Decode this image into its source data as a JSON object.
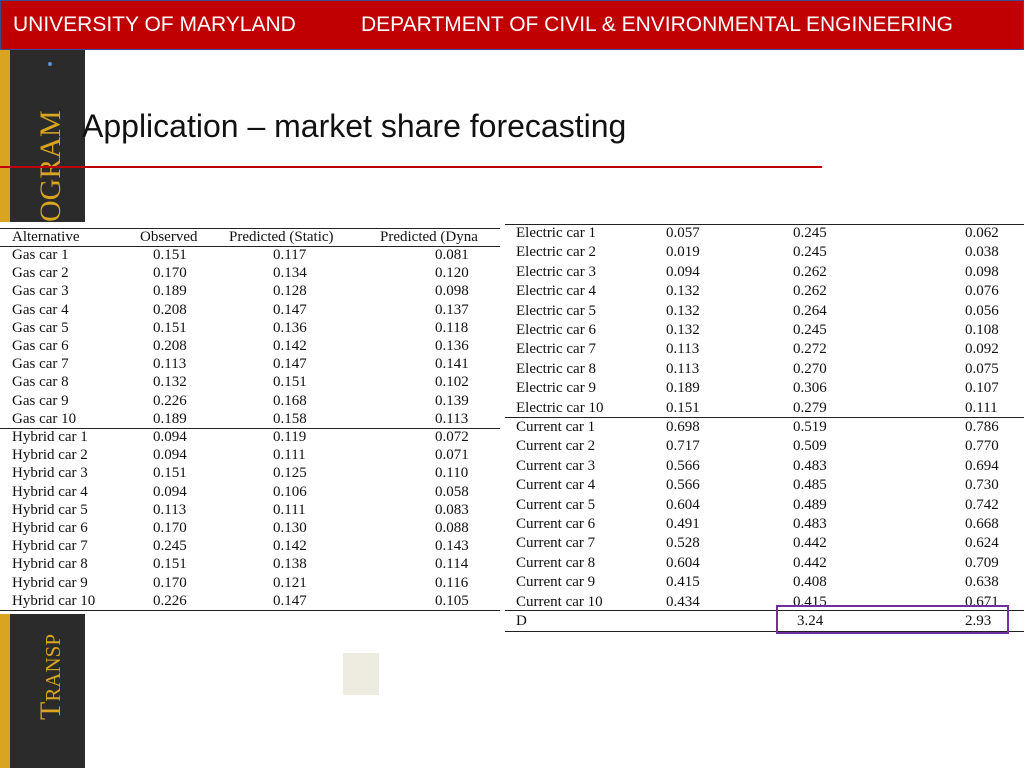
{
  "header": {
    "left": "UNIVERSITY OF MARYLAND",
    "right": "DEPARTMENT OF CIVIL & ENVIRONMENTAL ENGINEERING"
  },
  "sidebar": {
    "top": "OGRAM",
    "bottom": "Transp"
  },
  "title": "Application – market share forecasting",
  "left_table": {
    "columns": [
      "Alternative",
      "Observed",
      "Predicted (Static)",
      "Predicted (Dyna"
    ],
    "rows": [
      [
        "Gas car 1",
        "0.151",
        "0.117",
        "0.081"
      ],
      [
        "Gas car 2",
        "0.170",
        "0.134",
        "0.120"
      ],
      [
        "Gas car 3",
        "0.189",
        "0.128",
        "0.098"
      ],
      [
        "Gas car 4",
        "0.208",
        "0.147",
        "0.137"
      ],
      [
        "Gas car 5",
        "0.151",
        "0.136",
        "0.118"
      ],
      [
        "Gas car 6",
        "0.208",
        "0.142",
        "0.136"
      ],
      [
        "Gas car 7",
        "0.113",
        "0.147",
        "0.141"
      ],
      [
        "Gas car 8",
        "0.132",
        "0.151",
        "0.102"
      ],
      [
        "Gas car 9",
        "0.226",
        "0.168",
        "0.139"
      ],
      [
        "Gas car 10",
        "0.189",
        "0.158",
        "0.113"
      ],
      [
        "Hybrid car 1",
        "0.094",
        "0.119",
        "0.072"
      ],
      [
        "Hybrid car 2",
        "0.094",
        "0.111",
        "0.071"
      ],
      [
        "Hybrid car 3",
        "0.151",
        "0.125",
        "0.110"
      ],
      [
        "Hybrid car 4",
        "0.094",
        "0.106",
        "0.058"
      ],
      [
        "Hybrid car 5",
        "0.113",
        "0.111",
        "0.083"
      ],
      [
        "Hybrid car 6",
        "0.170",
        "0.130",
        "0.088"
      ],
      [
        "Hybrid car 7",
        "0.245",
        "0.142",
        "0.143"
      ],
      [
        "Hybrid car 8",
        "0.151",
        "0.138",
        "0.114"
      ],
      [
        "Hybrid car 9",
        "0.170",
        "0.121",
        "0.116"
      ],
      [
        "Hybrid car 10",
        "0.226",
        "0.147",
        "0.105"
      ]
    ]
  },
  "right_table": {
    "rows": [
      [
        "Electric car 1",
        "0.057",
        "0.245",
        "0.062"
      ],
      [
        "Electric car 2",
        "0.019",
        "0.245",
        "0.038"
      ],
      [
        "Electric car 3",
        "0.094",
        "0.262",
        "0.098"
      ],
      [
        "Electric car 4",
        "0.132",
        "0.262",
        "0.076"
      ],
      [
        "Electric car 5",
        "0.132",
        "0.264",
        "0.056"
      ],
      [
        "Electric car 6",
        "0.132",
        "0.245",
        "0.108"
      ],
      [
        "Electric car 7",
        "0.113",
        "0.272",
        "0.092"
      ],
      [
        "Electric car 8",
        "0.113",
        "0.270",
        "0.075"
      ],
      [
        "Electric car 9",
        "0.189",
        "0.306",
        "0.107"
      ],
      [
        "Electric car 10",
        "0.151",
        "0.279",
        "0.111"
      ],
      [
        "Current car 1",
        "0.698",
        "0.519",
        "0.786"
      ],
      [
        "Current car 2",
        "0.717",
        "0.509",
        "0.770"
      ],
      [
        "Current car 3",
        "0.566",
        "0.483",
        "0.694"
      ],
      [
        "Current car 4",
        "0.566",
        "0.485",
        "0.730"
      ],
      [
        "Current car 5",
        "0.604",
        "0.489",
        "0.742"
      ],
      [
        "Current car 6",
        "0.491",
        "0.483",
        "0.668"
      ],
      [
        "Current car 7",
        "0.528",
        "0.442",
        "0.624"
      ],
      [
        "Current car 8",
        "0.604",
        "0.442",
        "0.709"
      ],
      [
        "Current car 9",
        "0.415",
        "0.408",
        "0.638"
      ],
      [
        "Current car 10",
        "0.434",
        "0.415",
        "0.671"
      ]
    ],
    "total": [
      "D",
      "3.24",
      "2.93"
    ]
  }
}
